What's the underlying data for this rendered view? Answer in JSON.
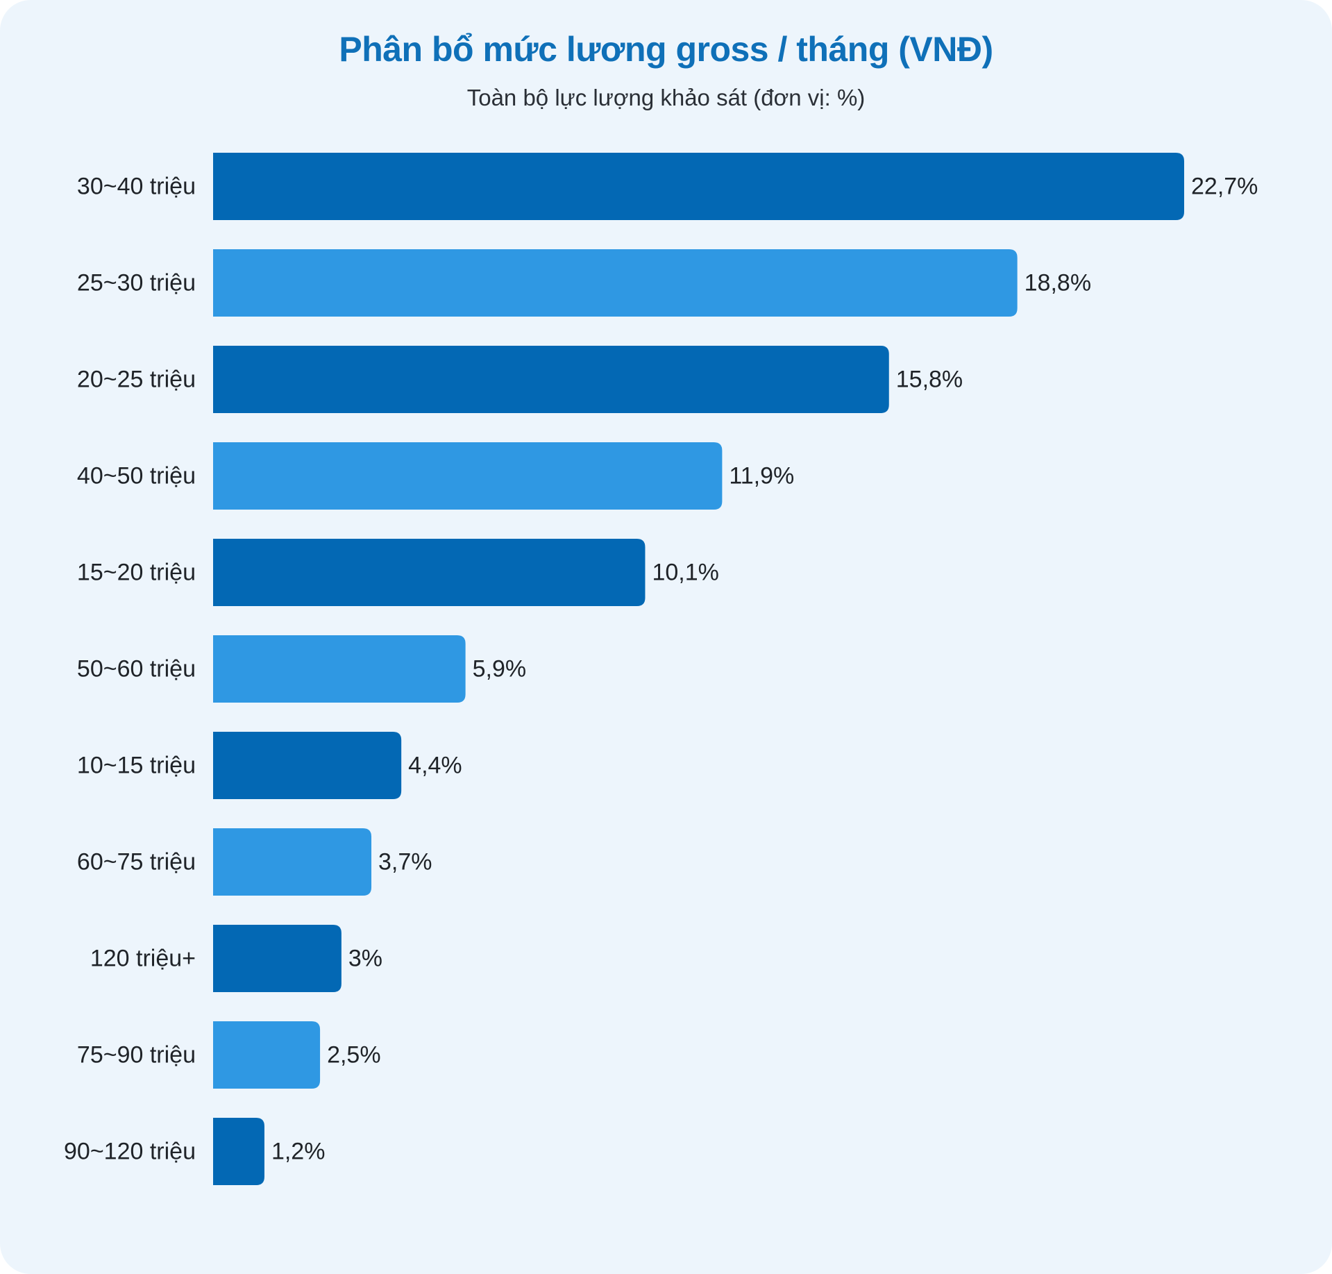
{
  "chart_data": {
    "type": "bar",
    "orientation": "horizontal",
    "title": "Phân bổ mức lương gross / tháng (VNĐ)",
    "subtitle": "Toàn bộ lực lượng khảo sát (đơn vị: %)",
    "categories": [
      "30~40 triệu",
      "25~30 triệu",
      "20~25 triệu",
      "40~50 triệu",
      "15~20 triệu",
      "50~60 triệu",
      "10~15 triệu",
      "60~75 triệu",
      "120 triệu+",
      "75~90 triệu",
      "90~120 triệu"
    ],
    "values": [
      22.7,
      18.8,
      15.8,
      11.9,
      10.1,
      5.9,
      4.4,
      3.7,
      3,
      2.5,
      1.2
    ],
    "value_labels": [
      "22,7%",
      "18,8%",
      "15,8%",
      "11,9%",
      "10,1%",
      "5,9%",
      "4,4%",
      "3,7%",
      "3%",
      "2,5%",
      "1,2%"
    ],
    "xlim": [
      0,
      22.7
    ],
    "grid": false,
    "legend": "none",
    "colors": {
      "dark": "#0368b4",
      "light": "#2f98e3",
      "title": "#0f70b8",
      "background": "#edf5fc"
    }
  }
}
